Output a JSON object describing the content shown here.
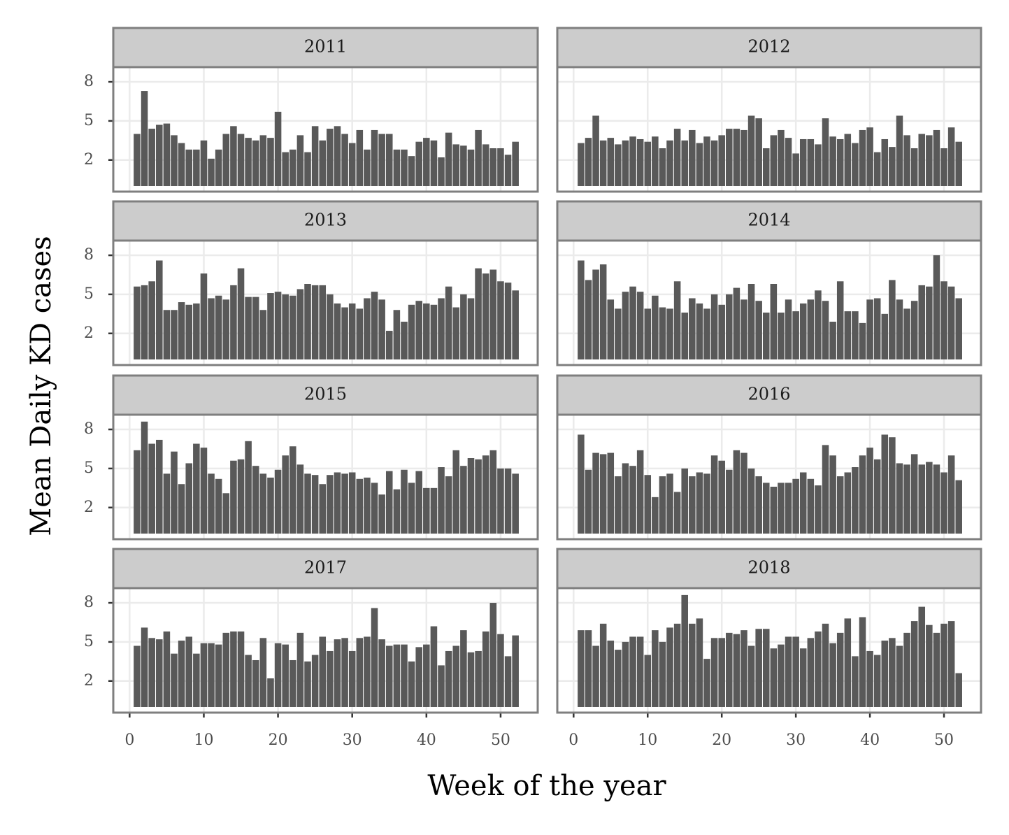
{
  "chart_data": {
    "type": "bar",
    "xlabel": "Week of the year",
    "ylabel": "Mean Daily KD cases",
    "color": "#595959",
    "grid": true,
    "x": [
      1,
      2,
      3,
      4,
      5,
      6,
      7,
      8,
      9,
      10,
      11,
      12,
      13,
      14,
      15,
      16,
      17,
      18,
      19,
      20,
      21,
      22,
      23,
      24,
      25,
      26,
      27,
      28,
      29,
      30,
      31,
      32,
      33,
      34,
      35,
      36,
      37,
      38,
      39,
      40,
      41,
      42,
      43,
      44,
      45,
      46,
      47,
      48,
      49,
      50,
      51,
      52
    ],
    "xlim": [
      -2.2,
      55
    ],
    "xticks": [
      0,
      10,
      20,
      30,
      40,
      50
    ],
    "ylim": [
      -0.43,
      9.13
    ],
    "yticks": [
      2,
      5,
      8
    ],
    "facets": [
      {
        "title": "2011",
        "values": [
          4.0,
          7.3,
          4.4,
          4.7,
          4.8,
          3.9,
          3.3,
          2.8,
          2.8,
          3.5,
          2.1,
          2.8,
          4.0,
          4.6,
          4.0,
          3.7,
          3.5,
          3.9,
          3.7,
          5.7,
          2.6,
          2.8,
          3.9,
          2.6,
          4.6,
          3.5,
          4.4,
          4.6,
          4.0,
          3.3,
          4.3,
          2.8,
          4.3,
          4.0,
          4.0,
          2.8,
          2.8,
          2.3,
          3.4,
          3.7,
          3.5,
          2.2,
          4.1,
          3.2,
          3.1,
          2.8,
          4.3,
          3.2,
          2.9,
          2.9,
          2.4,
          3.4
        ]
      },
      {
        "title": "2012",
        "values": [
          3.3,
          3.7,
          5.4,
          3.5,
          3.7,
          3.2,
          3.5,
          3.8,
          3.6,
          3.4,
          3.8,
          2.9,
          3.5,
          4.4,
          3.5,
          4.3,
          3.3,
          3.8,
          3.5,
          3.9,
          4.4,
          4.4,
          4.3,
          5.4,
          5.2,
          2.9,
          3.9,
          4.3,
          3.7,
          2.5,
          3.6,
          3.6,
          3.2,
          5.2,
          3.8,
          3.6,
          4.0,
          3.3,
          4.3,
          4.5,
          2.6,
          3.6,
          3.0,
          5.4,
          3.9,
          2.9,
          4.0,
          3.9,
          4.3,
          2.9,
          4.5,
          3.4
        ]
      },
      {
        "title": "2013",
        "values": [
          5.6,
          5.7,
          6.0,
          7.6,
          3.8,
          3.8,
          4.4,
          4.2,
          4.3,
          6.6,
          4.7,
          4.9,
          4.6,
          5.7,
          7.0,
          4.8,
          4.8,
          3.8,
          5.1,
          5.2,
          5.0,
          4.9,
          5.4,
          5.8,
          5.7,
          5.7,
          5.0,
          4.3,
          4.0,
          4.3,
          3.9,
          4.7,
          5.2,
          4.6,
          2.2,
          3.8,
          2.9,
          4.2,
          4.5,
          4.3,
          4.2,
          4.7,
          5.6,
          4.0,
          5.0,
          4.7,
          7.0,
          6.6,
          6.9,
          6.0,
          5.9,
          5.3
        ]
      },
      {
        "title": "2014",
        "values": [
          7.6,
          6.1,
          6.9,
          7.3,
          4.6,
          3.9,
          5.2,
          5.6,
          5.2,
          3.9,
          4.9,
          4.0,
          3.9,
          6.0,
          3.6,
          4.7,
          4.3,
          3.9,
          5.0,
          4.2,
          5.0,
          5.5,
          4.6,
          5.8,
          4.5,
          3.6,
          5.8,
          3.6,
          4.6,
          3.7,
          4.3,
          4.6,
          5.3,
          4.5,
          2.9,
          6.0,
          3.7,
          3.7,
          2.8,
          4.6,
          4.7,
          3.5,
          6.1,
          4.6,
          3.9,
          4.5,
          5.7,
          5.6,
          8.0,
          6.0,
          5.6,
          4.7
        ]
      },
      {
        "title": "2015",
        "values": [
          6.4,
          8.6,
          6.9,
          7.2,
          4.6,
          6.3,
          3.8,
          5.4,
          6.9,
          6.6,
          4.6,
          4.2,
          3.1,
          5.6,
          5.7,
          7.1,
          5.2,
          4.6,
          4.3,
          4.9,
          6.0,
          6.7,
          5.3,
          4.6,
          4.5,
          3.8,
          4.5,
          4.7,
          4.6,
          4.7,
          4.2,
          4.3,
          3.9,
          3.0,
          4.8,
          3.4,
          4.9,
          3.9,
          4.8,
          3.5,
          3.5,
          5.1,
          4.4,
          6.4,
          5.2,
          5.8,
          5.7,
          6.0,
          6.4,
          5.0,
          5.0,
          4.6
        ]
      },
      {
        "title": "2016",
        "values": [
          7.6,
          4.9,
          6.2,
          6.1,
          6.2,
          4.4,
          5.4,
          5.2,
          6.4,
          4.5,
          2.8,
          4.4,
          4.6,
          3.2,
          5.0,
          4.4,
          4.7,
          4.6,
          6.0,
          5.6,
          4.9,
          6.4,
          6.2,
          5.0,
          4.4,
          3.9,
          3.6,
          3.9,
          3.9,
          4.2,
          4.7,
          4.2,
          3.7,
          6.8,
          6.0,
          4.4,
          4.7,
          5.1,
          6.0,
          6.6,
          5.7,
          7.6,
          7.4,
          5.4,
          5.3,
          6.1,
          5.3,
          5.5,
          5.3,
          4.7,
          6.0,
          4.1
        ]
      },
      {
        "title": "2017",
        "values": [
          4.7,
          6.1,
          5.3,
          5.2,
          5.8,
          4.1,
          5.1,
          5.4,
          4.1,
          4.9,
          4.9,
          4.8,
          5.7,
          5.8,
          5.8,
          4.0,
          3.6,
          5.3,
          2.2,
          4.9,
          4.8,
          3.6,
          5.7,
          3.5,
          4.0,
          5.4,
          4.3,
          5.2,
          5.3,
          4.3,
          5.3,
          5.4,
          7.6,
          5.2,
          4.7,
          4.8,
          4.8,
          3.5,
          4.6,
          4.8,
          6.2,
          3.2,
          4.3,
          4.7,
          5.9,
          4.2,
          4.3,
          5.8,
          8.0,
          5.6,
          3.9,
          5.5
        ]
      },
      {
        "title": "2018",
        "values": [
          5.9,
          5.9,
          4.7,
          6.4,
          5.1,
          4.4,
          5.0,
          5.4,
          5.4,
          4.0,
          5.9,
          5.0,
          6.1,
          6.4,
          8.6,
          6.4,
          6.8,
          3.7,
          5.3,
          5.3,
          5.7,
          5.6,
          5.9,
          4.7,
          6.0,
          6.0,
          4.5,
          4.8,
          5.4,
          5.4,
          4.5,
          5.3,
          5.8,
          6.4,
          4.9,
          5.7,
          6.8,
          3.9,
          6.9,
          4.3,
          4.0,
          5.1,
          5.3,
          4.7,
          5.7,
          6.6,
          7.7,
          6.3,
          5.7,
          6.4,
          6.6,
          2.6
        ]
      }
    ]
  }
}
